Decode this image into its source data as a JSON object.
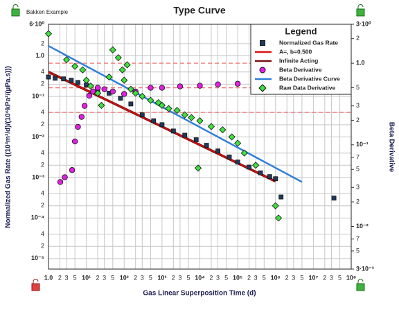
{
  "chart_data": {
    "type": "scatter",
    "title": "Type Curve",
    "subtitle": "Bakken Example",
    "xlabel": "Gas Linear Superposition Time (d)",
    "ylabel": "Normalized Gas Rate ((10³m³/d)/(10⁶kPa²/(µPa.s)))",
    "y2label": "Beta Derivative",
    "legend_title": "Legend",
    "log_x": true,
    "log_y": true,
    "log_y2": true,
    "grid": true,
    "legend": "upper right",
    "xlim": [
      1,
      100000000
    ],
    "ylim": [
      5.5e-06,
      6
    ],
    "y2lim": [
      0.003,
      3
    ],
    "xticks": [
      {
        "value": 1,
        "label": "1.0"
      },
      2,
      3,
      5,
      {
        "value": 10,
        "label": "10¹"
      },
      {
        "value": 20,
        "label": "2"
      },
      {
        "value": 30,
        "label": "3"
      },
      {
        "value": 50,
        "label": "5"
      },
      {
        "value": 100,
        "label": "10²"
      },
      {
        "value": 200,
        "label": "2"
      },
      {
        "value": 300,
        "label": "3"
      },
      {
        "value": 500,
        "label": "5"
      },
      {
        "value": 1000,
        "label": "10³"
      },
      {
        "value": 2000,
        "label": "2"
      },
      {
        "value": 3000,
        "label": "3"
      },
      {
        "value": 5000,
        "label": "5"
      },
      {
        "value": 10000,
        "label": "10⁴"
      },
      {
        "value": 20000,
        "label": "2"
      },
      {
        "value": 30000,
        "label": "3"
      },
      {
        "value": 50000,
        "label": "5"
      },
      {
        "value": 100000,
        "label": "10⁵"
      },
      {
        "value": 200000,
        "label": "2"
      },
      {
        "value": 300000,
        "label": "3"
      },
      {
        "value": 500000,
        "label": "5"
      },
      {
        "value": 1000000,
        "label": "10⁶"
      },
      {
        "value": 2000000,
        "label": "2"
      },
      {
        "value": 3000000,
        "label": "3"
      },
      {
        "value": 5000000,
        "label": "5"
      },
      {
        "value": 10000000,
        "label": "10⁷"
      },
      {
        "value": 20000000,
        "label": "2"
      },
      {
        "value": 30000000,
        "label": "3"
      },
      {
        "value": 50000000,
        "label": "5"
      },
      {
        "value": 100000000,
        "label": "10⁸"
      }
    ],
    "yticks": [
      {
        "value": 6,
        "label": "6·10⁰"
      },
      2,
      {
        "value": 1,
        "label": "1.0"
      },
      {
        "value": 0.4,
        "label": "4"
      },
      {
        "value": 0.2,
        "label": "2"
      },
      {
        "value": 0.1,
        "label": "10⁻¹"
      },
      {
        "value": 0.04,
        "label": "4"
      },
      {
        "value": 0.02,
        "label": "2"
      },
      {
        "value": 0.01,
        "label": "10⁻²"
      },
      {
        "value": 0.004,
        "label": "4"
      },
      {
        "value": 0.002,
        "label": "2"
      },
      {
        "value": 0.001,
        "label": "10⁻³"
      },
      {
        "value": 0.0004,
        "label": "4"
      },
      {
        "value": 0.0002,
        "label": "2"
      },
      {
        "value": 0.0001,
        "label": "10⁻⁴"
      },
      {
        "value": 4e-05,
        "label": "4"
      },
      {
        "value": 2e-05,
        "label": "2"
      },
      {
        "value": 1e-05,
        "label": "10⁻⁵"
      }
    ],
    "y2ticks": [
      {
        "value": 3,
        "label": "3·10⁰"
      },
      2,
      {
        "value": 1,
        "label": "1.0"
      },
      {
        "value": 0.5,
        "label": "5"
      },
      {
        "value": 0.3,
        "label": "3"
      },
      {
        "value": 0.2,
        "label": "2"
      },
      {
        "value": 0.1,
        "label": "10⁻¹"
      },
      {
        "value": 0.07,
        "label": "7"
      },
      {
        "value": 0.05,
        "label": "5"
      },
      {
        "value": 0.03,
        "label": "3"
      },
      {
        "value": 0.02,
        "label": "2"
      },
      {
        "value": 0.01,
        "label": "10⁻²"
      },
      {
        "value": 0.007,
        "label": "7"
      },
      {
        "value": 0.005,
        "label": "5"
      },
      {
        "value": 0.003,
        "label": "3·10⁻³"
      }
    ],
    "reference_lines": {
      "axis": "y2",
      "color": "#f07070",
      "values": [
        1,
        0.5,
        0.25
      ]
    },
    "series": [
      {
        "name": "Normalized Gas Rate",
        "marker": "square",
        "color": "#1f3a5f",
        "x": [
          1,
          1.5,
          2.5,
          4,
          6,
          10,
          20,
          40,
          80,
          150,
          300,
          600,
          1000,
          2000,
          4000,
          8000,
          15000,
          30000,
          60000,
          100000,
          200000,
          400000,
          700000,
          1000000,
          1400000,
          35000000
        ],
        "values": [
          0.3,
          0.28,
          0.27,
          0.25,
          0.22,
          0.19,
          0.15,
          0.12,
          0.09,
          0.065,
          0.035,
          0.025,
          0.02,
          0.014,
          0.011,
          0.0085,
          0.0062,
          0.0045,
          0.0032,
          0.0024,
          0.0018,
          0.0013,
          0.00105,
          0.00093,
          0.00033,
          0.00031
        ]
      },
      {
        "name": "A=, b=0.500",
        "marker": "line",
        "color": "#e01010",
        "x": [
          1,
          1000000
        ],
        "values": [
          0.4,
          0.0008
        ]
      },
      {
        "name": "Infinite Acting",
        "marker": "line",
        "color": "#7a1010",
        "x": [
          1,
          1000000
        ],
        "values": [
          0.4,
          0.0008
        ]
      },
      {
        "name": "Beta Derivative",
        "marker": "circle",
        "color": "#e020e0",
        "axis": "y2",
        "x": [
          2.05,
          2.7,
          4.2,
          5,
          6,
          7.5,
          9,
          12,
          15,
          20,
          30,
          50,
          100,
          200,
          500,
          1000,
          3000,
          10000,
          30000,
          100000,
          300000
        ],
        "values": [
          0.035,
          0.04,
          0.049,
          0.11,
          0.166,
          0.22,
          0.3,
          0.4,
          0.45,
          0.5,
          0.48,
          0.45,
          0.42,
          0.45,
          0.5,
          0.5,
          0.52,
          0.53,
          0.55,
          0.56,
          0.56
        ]
      },
      {
        "name": "Beta Derivative Curve",
        "marker": "line",
        "color": "#2f7fd8",
        "axis": "y2",
        "x": [
          1,
          5000000
        ],
        "values": [
          1.63,
          0.035
        ]
      },
      {
        "name": "Raw Data Derivative",
        "marker": "diamond",
        "color": "#40e040",
        "x": [
          1,
          3,
          5,
          8,
          10,
          13,
          20,
          25,
          40,
          50,
          70,
          90,
          100,
          120,
          150,
          200,
          300,
          500,
          800,
          1000,
          1500,
          2500,
          4000,
          6000,
          9000,
          10000,
          20000,
          40000,
          70000,
          100000,
          150000,
          300000,
          1000000,
          1200000
        ],
        "values": [
          3.5,
          0.8,
          0.55,
          0.45,
          0.25,
          0.18,
          0.12,
          0.06,
          0.3,
          1.4,
          0.9,
          0.45,
          0.25,
          0.6,
          0.15,
          0.12,
          0.1,
          0.08,
          0.07,
          0.06,
          0.05,
          0.045,
          0.035,
          0.03,
          0.0017,
          0.025,
          0.018,
          0.015,
          0.01,
          0.007,
          0.004,
          0.002,
          0.0002,
          0.0001
        ]
      }
    ]
  }
}
